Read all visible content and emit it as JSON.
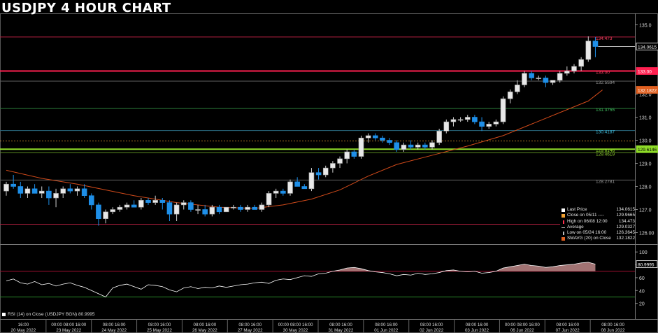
{
  "title": "USDJPY 4 HOUR CHART",
  "colors": {
    "background": "#000000",
    "bull": "#e8e8e8",
    "bear": "#1e8fe8",
    "sma": "#d04a1a",
    "rsi_line": "#ffffff",
    "rsi_fill": "#c99090",
    "resistance": "#ff2050",
    "support": "#8fdc28",
    "last_price_line": "#808080"
  },
  "chart_data": {
    "type": "candlestick",
    "price_axis": {
      "range": [
        125.5,
        135.5
      ],
      "ticks": [
        "126.00",
        "127.0",
        "128.0",
        "129.0",
        "130.0",
        "131.0",
        "132.0",
        "133.0",
        "134.0",
        "135.0"
      ]
    },
    "x_labels": [
      {
        "top": "16:00",
        "bottom": "20 May 2022"
      },
      {
        "top": "00:00 08:00 16:00",
        "bottom": "23 May 2022"
      },
      {
        "top": "08:00 16:00",
        "bottom": "24 May 2022"
      },
      {
        "top": "08:00 16:00",
        "bottom": "25 May 2022"
      },
      {
        "top": "08:00 16:00",
        "bottom": "26 May 2022"
      },
      {
        "top": "08:00 16:00",
        "bottom": "27 May 2022"
      },
      {
        "top": "00:00 08:00 16:00",
        "bottom": "30 May 2022"
      },
      {
        "top": "08:00 16:00",
        "bottom": "31 May 2022"
      },
      {
        "top": "08:00 16:00",
        "bottom": "01 Jun 2022"
      },
      {
        "top": "08:00 16:00",
        "bottom": "02 Jun 2022"
      },
      {
        "top": "08:00 16:00",
        "bottom": "03 Jun 2022"
      },
      {
        "top": "00:00 08:00 16:00",
        "bottom": "06 Jun 2022"
      },
      {
        "top": "08:00 16:00",
        "bottom": "07 Jun 2022"
      },
      {
        "top": "08:00 16:00",
        "bottom": "08 Jun 2022"
      }
    ],
    "candles": [
      [
        127.8,
        128.2,
        127.6,
        128.1
      ],
      [
        128.1,
        128.5,
        127.9,
        128.0
      ],
      [
        128.0,
        128.2,
        127.5,
        127.7
      ],
      [
        127.7,
        128.0,
        127.5,
        127.9
      ],
      [
        127.9,
        128.1,
        127.7,
        127.7
      ],
      [
        127.7,
        128.0,
        127.5,
        127.8
      ],
      [
        127.8,
        128.0,
        127.2,
        127.5
      ],
      [
        127.5,
        127.9,
        127.1,
        127.7
      ],
      [
        127.7,
        128.0,
        127.5,
        127.9
      ],
      [
        127.9,
        128.1,
        127.7,
        127.8
      ],
      [
        127.8,
        128.0,
        127.6,
        127.9
      ],
      [
        127.9,
        128.1,
        127.5,
        127.6
      ],
      [
        127.6,
        127.7,
        127.0,
        127.2
      ],
      [
        127.2,
        127.3,
        126.3,
        126.6
      ],
      [
        126.6,
        127.0,
        126.4,
        126.9
      ],
      [
        126.9,
        127.1,
        126.8,
        127.0
      ],
      [
        127.0,
        127.2,
        126.9,
        127.1
      ],
      [
        127.1,
        127.3,
        127.0,
        127.2
      ],
      [
        127.2,
        127.4,
        127.1,
        127.1
      ],
      [
        127.1,
        127.5,
        127.0,
        127.4
      ],
      [
        127.4,
        127.5,
        127.2,
        127.3
      ],
      [
        127.3,
        127.6,
        127.2,
        127.4
      ],
      [
        127.4,
        127.5,
        127.0,
        127.3
      ],
      [
        127.3,
        127.4,
        126.5,
        126.8
      ],
      [
        126.8,
        127.3,
        126.5,
        127.2
      ],
      [
        127.2,
        127.4,
        127.0,
        127.3
      ],
      [
        127.3,
        127.4,
        126.9,
        127.0
      ],
      [
        127.0,
        127.2,
        126.8,
        127.0
      ],
      [
        127.0,
        127.2,
        126.7,
        126.8
      ],
      [
        126.8,
        127.2,
        126.7,
        127.1
      ],
      [
        127.1,
        127.2,
        126.8,
        126.9
      ],
      [
        126.9,
        127.1,
        126.9,
        127.1
      ],
      [
        127.1,
        127.2,
        127.0,
        127.1
      ],
      [
        127.1,
        127.2,
        126.9,
        127.0
      ],
      [
        127.0,
        127.2,
        126.9,
        127.1
      ],
      [
        127.1,
        127.2,
        127.0,
        127.0
      ],
      [
        127.0,
        127.3,
        126.9,
        127.2
      ],
      [
        127.2,
        127.8,
        127.1,
        127.7
      ],
      [
        127.7,
        127.9,
        127.5,
        127.8
      ],
      [
        127.8,
        127.9,
        127.6,
        127.7
      ],
      [
        127.7,
        128.3,
        127.6,
        128.2
      ],
      [
        128.2,
        128.4,
        128.0,
        128.0
      ],
      [
        128.0,
        128.1,
        127.9,
        127.9
      ],
      [
        127.9,
        128.8,
        127.8,
        128.6
      ],
      [
        128.6,
        128.8,
        128.3,
        128.5
      ],
      [
        128.5,
        128.9,
        128.4,
        128.8
      ],
      [
        128.8,
        129.1,
        128.6,
        129.0
      ],
      [
        129.0,
        129.3,
        128.8,
        129.2
      ],
      [
        129.2,
        129.6,
        129.0,
        129.5
      ],
      [
        129.5,
        129.6,
        129.2,
        129.3
      ],
      [
        129.3,
        130.2,
        129.2,
        130.1
      ],
      [
        130.1,
        130.3,
        129.9,
        130.2
      ],
      [
        130.2,
        130.3,
        130.0,
        130.1
      ],
      [
        130.1,
        130.2,
        129.9,
        130.0
      ],
      [
        130.0,
        130.1,
        129.8,
        129.9
      ],
      [
        129.9,
        130.0,
        129.5,
        129.6
      ],
      [
        129.6,
        129.9,
        129.5,
        129.8
      ],
      [
        129.8,
        130.0,
        129.6,
        129.7
      ],
      [
        129.7,
        129.9,
        129.6,
        129.8
      ],
      [
        129.8,
        129.9,
        129.6,
        129.7
      ],
      [
        129.7,
        130.0,
        129.6,
        129.9
      ],
      [
        129.9,
        130.5,
        129.8,
        130.4
      ],
      [
        130.4,
        130.9,
        130.3,
        130.8
      ],
      [
        130.8,
        131.0,
        130.6,
        130.9
      ],
      [
        130.9,
        131.0,
        130.8,
        130.9
      ],
      [
        130.9,
        131.1,
        130.8,
        131.0
      ],
      [
        131.0,
        131.1,
        130.7,
        130.8
      ],
      [
        130.8,
        131.0,
        130.4,
        130.6
      ],
      [
        130.6,
        130.8,
        130.5,
        130.7
      ],
      [
        130.7,
        130.9,
        130.6,
        130.8
      ],
      [
        130.8,
        131.9,
        130.7,
        131.8
      ],
      [
        131.8,
        132.2,
        131.6,
        132.1
      ],
      [
        132.1,
        132.6,
        132.0,
        132.4
      ],
      [
        132.4,
        133.0,
        132.3,
        132.9
      ],
      [
        132.9,
        133.0,
        132.6,
        132.7
      ],
      [
        132.7,
        132.8,
        132.6,
        132.7
      ],
      [
        132.7,
        132.8,
        132.3,
        132.5
      ],
      [
        132.5,
        132.6,
        132.4,
        132.6
      ],
      [
        132.6,
        133.0,
        132.5,
        132.9
      ],
      [
        132.9,
        133.2,
        132.8,
        133.0
      ],
      [
        133.0,
        133.3,
        132.9,
        133.2
      ],
      [
        133.2,
        133.6,
        133.0,
        133.5
      ],
      [
        133.5,
        134.5,
        133.4,
        134.3
      ],
      [
        134.3,
        134.47,
        133.6,
        134.06
      ]
    ],
    "sma20": [
      [
        0,
        128.7
      ],
      [
        5,
        128.35
      ],
      [
        10,
        128.1
      ],
      [
        14,
        127.85
      ],
      [
        18,
        127.6
      ],
      [
        24,
        127.3
      ],
      [
        30,
        127.1
      ],
      [
        35,
        127.05
      ],
      [
        39,
        127.2
      ],
      [
        43,
        127.45
      ],
      [
        47,
        127.85
      ],
      [
        51,
        128.45
      ],
      [
        55,
        128.95
      ],
      [
        60,
        129.35
      ],
      [
        65,
        129.75
      ],
      [
        70,
        130.2
      ],
      [
        74,
        130.7
      ],
      [
        78,
        131.2
      ],
      [
        82,
        131.7
      ],
      [
        84,
        132.18
      ]
    ],
    "price_levels": [
      {
        "value": 134.473,
        "label": "134.473",
        "kind": "high"
      },
      {
        "value": 133.0,
        "label": "133.00",
        "kind": "resistance"
      },
      {
        "value": 132.5594,
        "label": "132.5594",
        "kind": "fib"
      },
      {
        "value": 131.3755,
        "label": "131.3755",
        "kind": "fib"
      },
      {
        "value": 130.4187,
        "label": "130.4187",
        "kind": "fib"
      },
      {
        "value": 129.6146,
        "label": "129.6146",
        "kind": "support"
      },
      {
        "value": 129.4619,
        "label": "129.4619",
        "kind": "fib"
      },
      {
        "value": 128.2781,
        "label": "128.2781",
        "kind": "fib"
      },
      {
        "value": 126.3645,
        "label": "",
        "kind": "low"
      }
    ],
    "axis_badges": [
      {
        "label": "134.0615",
        "value": 134.0615
      },
      {
        "label": "133.00",
        "value": 133.0
      },
      {
        "label": "132.1822",
        "value": 132.1822
      },
      {
        "label": "129.6146",
        "value": 129.6146
      }
    ],
    "legend": [
      {
        "label": "Last Price",
        "value": "134.0615",
        "color": "#ffffff"
      },
      {
        "label": "Close on 05/11 ----",
        "value": "129.9665",
        "color": "#f0a030"
      },
      {
        "label": "High on 06/08 12:00",
        "value": "134.473",
        "color": "#ff3050"
      },
      {
        "label": "Average",
        "value": "129.0327",
        "color": "#bbbbbb"
      },
      {
        "label": "Low on 05/24 16:00",
        "value": "126.3645",
        "color": "#bbbbbb"
      },
      {
        "label": "SMAVG (20)  on Close",
        "value": "132.1822",
        "color": "#e06020"
      }
    ],
    "rsi": {
      "label": "RSI (14)  on Close (USDJPY BGN) 80.9995",
      "value_label": "80.9995",
      "range": [
        0,
        110
      ],
      "ticks": [
        "100",
        "80",
        "60",
        "40",
        "20"
      ],
      "overbought": 70,
      "oversold": 30,
      "values": [
        55,
        58,
        52,
        50,
        54,
        49,
        51,
        47,
        50,
        52,
        48,
        45,
        40,
        35,
        30,
        44,
        48,
        50,
        46,
        42,
        49,
        48,
        46,
        41,
        38,
        44,
        46,
        43,
        45,
        44,
        47,
        45,
        47,
        49,
        50,
        52,
        53,
        51,
        56,
        58,
        57,
        60,
        63,
        62,
        66,
        67,
        70,
        72,
        75,
        76,
        74,
        71,
        69,
        68,
        66,
        63,
        65,
        64,
        67,
        65,
        66,
        68,
        71,
        72,
        70,
        69,
        70,
        67,
        68,
        70,
        75,
        77,
        79,
        81,
        79,
        78,
        76,
        77,
        79,
        80,
        81,
        83,
        84,
        81
      ]
    }
  }
}
